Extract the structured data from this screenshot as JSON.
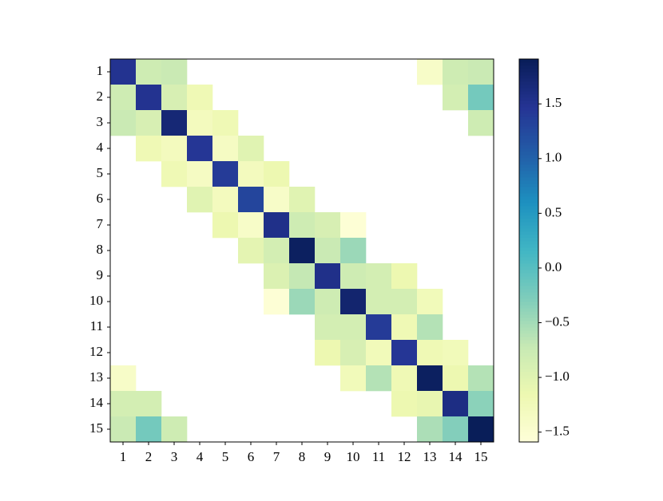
{
  "chart_data": {
    "type": "heatmap",
    "xticks": [
      1,
      2,
      3,
      4,
      5,
      6,
      7,
      8,
      9,
      10,
      11,
      12,
      13,
      14,
      15
    ],
    "yticks": [
      1,
      2,
      3,
      4,
      5,
      6,
      7,
      8,
      9,
      10,
      11,
      12,
      13,
      14,
      15
    ],
    "values": [
      [
        1.5,
        -0.8,
        -0.75,
        null,
        null,
        null,
        null,
        null,
        null,
        null,
        null,
        null,
        -1.4,
        -0.8,
        -0.75
      ],
      [
        -0.8,
        1.5,
        -0.9,
        -1.2,
        null,
        null,
        null,
        null,
        null,
        null,
        null,
        null,
        null,
        -0.85,
        -0.2
      ],
      [
        -0.75,
        -0.9,
        1.7,
        -1.3,
        -1.2,
        null,
        null,
        null,
        null,
        null,
        null,
        null,
        null,
        null,
        -0.8
      ],
      [
        null,
        -1.2,
        -1.3,
        1.45,
        -1.35,
        -1.0,
        null,
        null,
        null,
        null,
        null,
        null,
        null,
        null,
        null
      ],
      [
        null,
        null,
        -1.2,
        -1.35,
        1.4,
        -1.3,
        -1.15,
        null,
        null,
        null,
        null,
        null,
        null,
        null,
        null
      ],
      [
        null,
        null,
        null,
        -1.0,
        -1.3,
        1.3,
        -1.4,
        -1.0,
        null,
        null,
        null,
        null,
        null,
        null,
        null
      ],
      [
        null,
        null,
        null,
        null,
        -1.15,
        -1.4,
        1.55,
        -0.8,
        -0.9,
        -1.55,
        null,
        null,
        null,
        null,
        null
      ],
      [
        null,
        null,
        null,
        null,
        null,
        -1.05,
        -0.85,
        1.85,
        -0.75,
        -0.45,
        null,
        null,
        null,
        null,
        null
      ],
      [
        null,
        null,
        null,
        null,
        null,
        null,
        -0.95,
        -0.7,
        1.55,
        -0.8,
        -0.85,
        -1.15,
        null,
        null,
        null
      ],
      [
        null,
        null,
        null,
        null,
        null,
        null,
        -1.55,
        -0.45,
        -0.8,
        1.75,
        -0.85,
        -0.85,
        -1.25,
        null,
        null
      ],
      [
        null,
        null,
        null,
        null,
        null,
        null,
        null,
        null,
        -0.85,
        -0.85,
        1.4,
        -1.2,
        -0.6,
        null,
        null
      ],
      [
        null,
        null,
        null,
        null,
        null,
        null,
        null,
        null,
        -1.15,
        -0.9,
        -1.25,
        1.45,
        -1.2,
        -1.25,
        null
      ],
      [
        -1.4,
        null,
        null,
        null,
        null,
        null,
        null,
        null,
        null,
        -1.25,
        -0.6,
        -1.2,
        1.85,
        -1.15,
        -0.6
      ],
      [
        -0.85,
        -0.85,
        null,
        null,
        null,
        null,
        null,
        null,
        null,
        null,
        null,
        -1.15,
        -1.1,
        1.6,
        -0.35
      ],
      [
        -0.75,
        -0.2,
        -0.8,
        null,
        null,
        null,
        null,
        null,
        null,
        null,
        null,
        null,
        -0.55,
        -0.3,
        1.9
      ]
    ],
    "clim": [
      -1.59,
      1.91
    ],
    "colorbar_ticks": [
      {
        "value": -1.5,
        "label": "−1.5"
      },
      {
        "value": -1.0,
        "label": "−1.0"
      },
      {
        "value": -0.5,
        "label": "−0.5"
      },
      {
        "value": 0.0,
        "label": "0.0"
      },
      0.5,
      {
        "value": 1.0,
        "label": "1.0"
      },
      1.5
    ],
    "colormap": [
      "#ffffd9",
      "#edf8b1",
      "#c7e9b4",
      "#7fcdbb",
      "#41b6c4",
      "#1d91c0",
      "#225ea8",
      "#253494",
      "#081d58"
    ]
  }
}
